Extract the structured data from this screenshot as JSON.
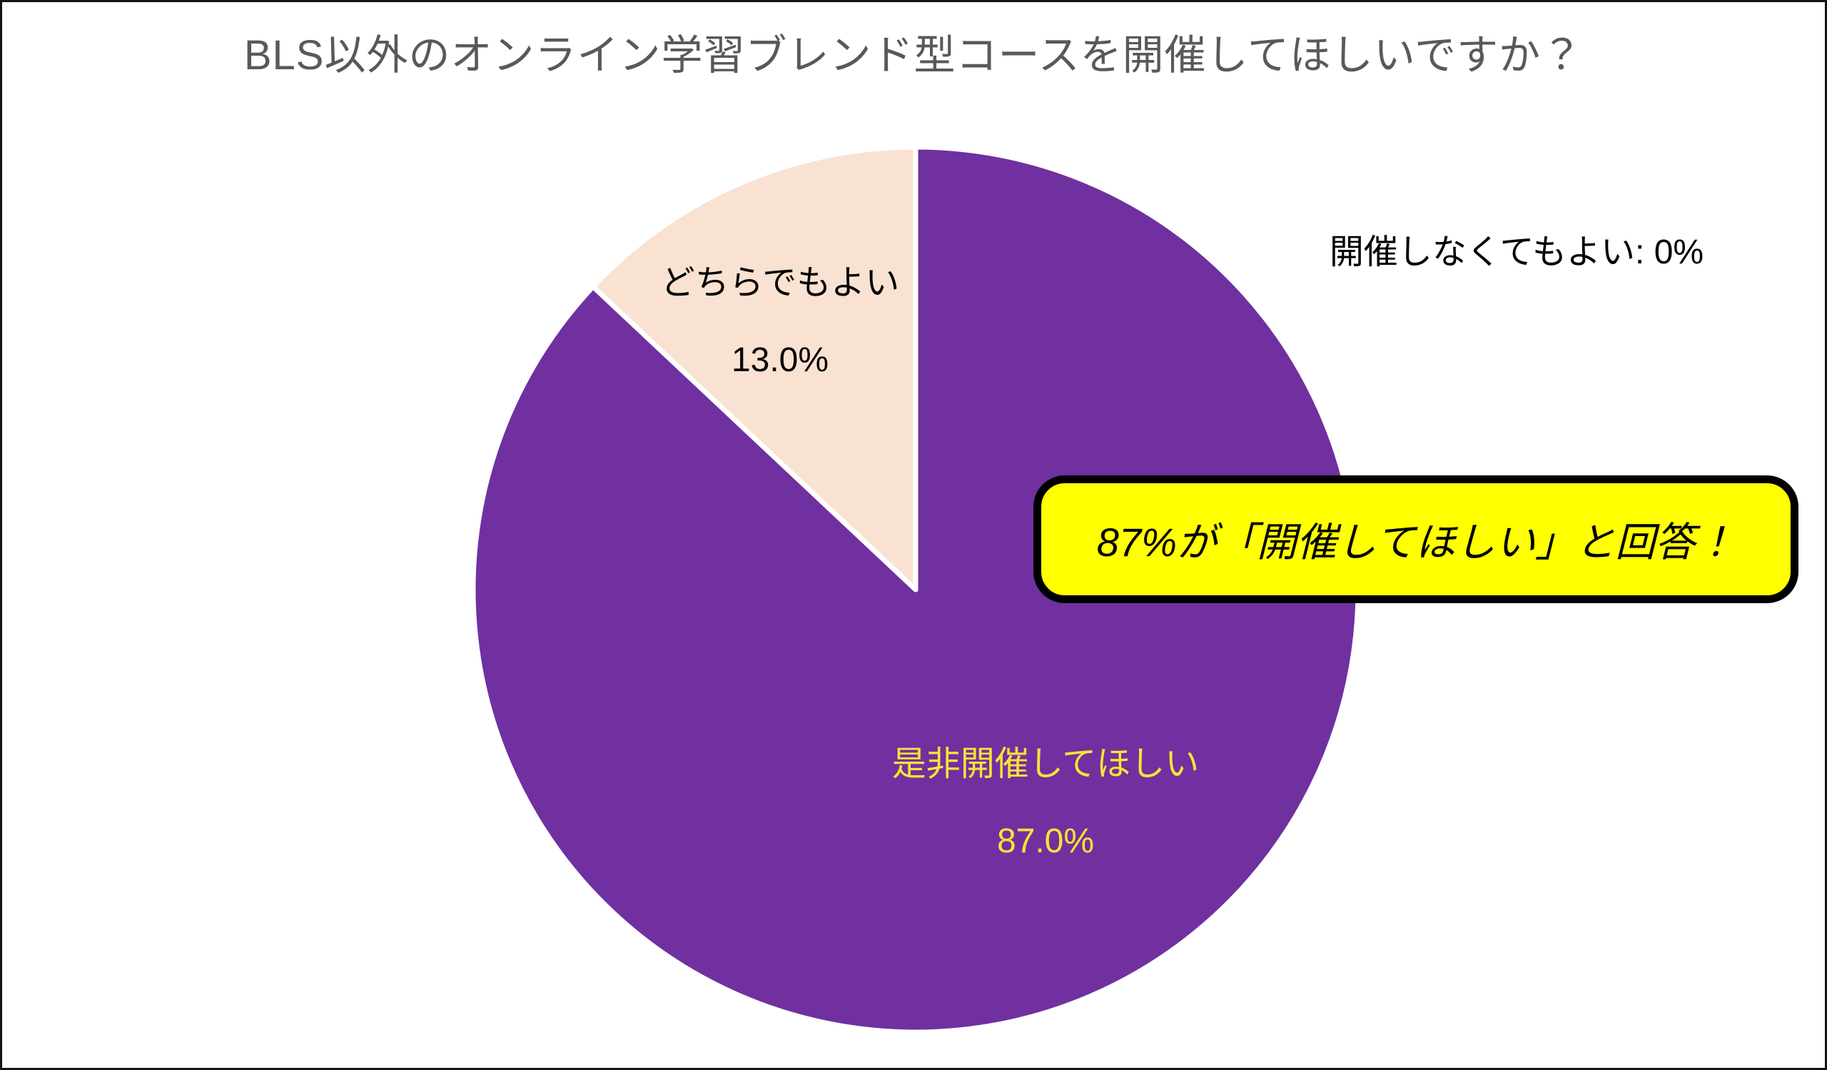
{
  "title": "BLS以外のオンライン学習ブレンド型コースを開催してほしいですか？",
  "chart_data": {
    "type": "pie",
    "title": "BLS以外のオンライン学習ブレンド型コースを開催してほしいですか？",
    "start_angle": "12-oclock",
    "direction": "clockwise",
    "legend": "none",
    "total": 100,
    "slices": [
      {
        "label": "是非開催してほしい",
        "value": 87.0,
        "value_label": "87.0%",
        "color": "#7030A0",
        "label_color": "#FFE135",
        "label_position": "inside"
      },
      {
        "label": "どちらでもよい",
        "value": 13.0,
        "value_label": "13.0%",
        "color": "#F9E2D2",
        "label_color": "#000000",
        "label_position": "inside"
      },
      {
        "label": "開催しなくてもよい",
        "value": 0.0,
        "value_label": "0%",
        "color": "#FFFFFF",
        "label_color": "#000000",
        "label_position": "outside-right"
      }
    ]
  },
  "annotations": {
    "zero_label": "開催しなくてもよい: 0%",
    "callout": {
      "text": "87%が「開催してほしい」と回答！",
      "bg_color": "#FFFF00",
      "border_color": "#000000",
      "text_color": "#000000"
    }
  },
  "colors": {
    "title": "#595959",
    "slice_separator": "#FFFFFF",
    "background": "#FFFFFF",
    "frame_border": "#141414"
  }
}
